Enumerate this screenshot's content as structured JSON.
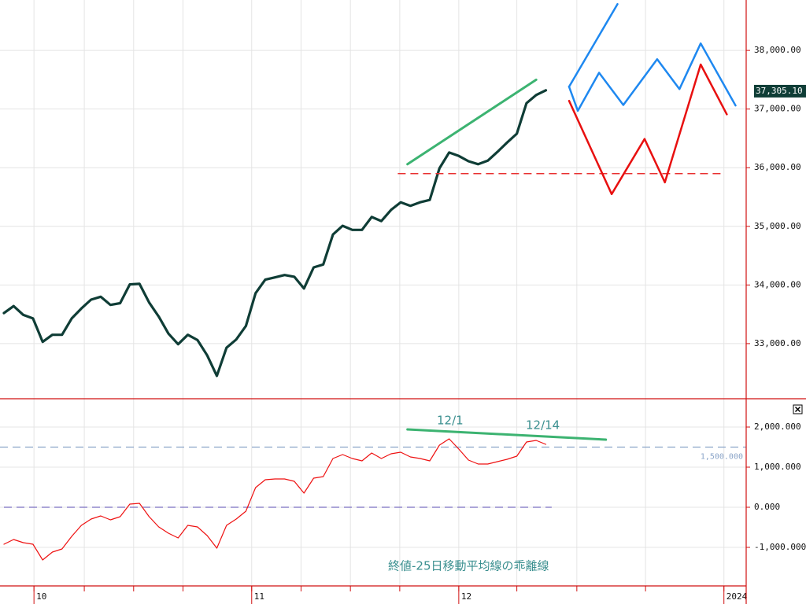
{
  "chart_data": [
    {
      "type": "line",
      "ylim": [
        32060,
        38860
      ],
      "yticks": [
        {
          "value": 33000,
          "label": "33,000.00"
        },
        {
          "value": 34000,
          "label": "34,000.00"
        },
        {
          "value": 35000,
          "label": "35,000.00"
        },
        {
          "value": 36000,
          "label": "36,000.00"
        },
        {
          "value": 37000,
          "label": "37,000.00"
        },
        {
          "value": 38000,
          "label": "38,000.00"
        }
      ],
      "price_label": {
        "value": 37305.1,
        "label": "37,305.10"
      },
      "series": [
        {
          "color": "#0f3d36",
          "width": 3.2,
          "x": [
            0,
            1,
            2,
            3,
            4,
            5,
            6,
            7,
            8,
            9,
            10,
            11,
            12,
            13,
            14,
            15,
            16,
            17,
            18,
            19,
            20,
            21,
            22,
            23,
            24,
            25,
            26,
            27,
            28,
            29,
            30,
            31,
            32,
            33,
            34,
            35,
            36,
            37,
            38,
            39,
            40,
            41,
            42,
            43,
            44,
            45,
            46,
            47,
            48,
            49,
            50,
            51,
            52,
            53,
            54,
            55,
            56
          ],
          "values": [
            33520,
            33640,
            33490,
            33430,
            33030,
            33150,
            33150,
            33430,
            33600,
            33750,
            33800,
            33660,
            33690,
            34010,
            34020,
            33700,
            33460,
            33170,
            32990,
            33150,
            33060,
            32800,
            32450,
            32930,
            33070,
            33300,
            33860,
            34090,
            34130,
            34170,
            34140,
            33940,
            34300,
            34350,
            34860,
            35010,
            34940,
            34940,
            35160,
            35090,
            35280,
            35410,
            35350,
            35410,
            35450,
            35990,
            36260,
            36200,
            36110,
            36060,
            36120,
            36270,
            36430,
            36580,
            37100,
            37240,
            37320
          ]
        },
        {
          "color": "#3cb371",
          "width": 3,
          "x": [
            41.7,
            55.0
          ],
          "values": [
            36060,
            37500
          ]
        },
        {
          "color": "#e83030",
          "width": 1.5,
          "dash": true,
          "x": [
            40.7,
            74.4
          ],
          "values": [
            35900,
            35900
          ]
        },
        {
          "color": "#1e88f0",
          "width": 2.5,
          "x": [
            58.4,
            63.4
          ],
          "values": [
            37380,
            38790
          ]
        },
        {
          "color": "#1e88f0",
          "width": 2.5,
          "x": [
            58.4,
            59.3,
            61.5,
            64,
            67.5,
            69.8,
            72,
            75.6
          ],
          "values": [
            37380,
            36970,
            37620,
            37070,
            37850,
            37340,
            38120,
            37060
          ]
        },
        {
          "color": "#e81010",
          "width": 2.5,
          "x": [
            58.4,
            62.8,
            66.2,
            68.3,
            72,
            74.7
          ],
          "values": [
            37140,
            35550,
            36490,
            35750,
            37760,
            36910
          ]
        }
      ]
    },
    {
      "type": "line",
      "ylim": [
        -1961,
        2706
      ],
      "yticks": [
        {
          "value": -1000,
          "label": "-1,000.000"
        },
        {
          "value": 0,
          "label": "0.000"
        },
        {
          "value": 1000,
          "label": "1,000.000"
        },
        {
          "value": 2000,
          "label": "2,000.000"
        }
      ],
      "xlim": [
        -0.41,
        76.7
      ],
      "xticks": [
        {
          "value": 3.1,
          "label": "10"
        },
        {
          "value": 25.6,
          "label": "11"
        },
        {
          "value": 47,
          "label": "12"
        },
        {
          "value": 74.4,
          "label": "2024"
        }
      ],
      "xgrid": [
        3.1,
        8.3,
        13.4,
        18.5,
        25.6,
        30.7,
        35.8,
        40.9,
        47,
        53,
        59.2,
        66.3,
        74.4
      ],
      "annotations": [
        "12/1",
        "12/14",
        "終値-25日移動平均線の乖離線"
      ],
      "series": [
        {
          "color": "#8aa4c8",
          "width": 1.2,
          "dash": true,
          "label": "1,500.000",
          "x": [
            -0.41,
            76.7
          ],
          "values": [
            1500,
            1500
          ]
        },
        {
          "color": "#7b6fc0",
          "width": 1.2,
          "dash": true,
          "x": [
            0,
            56.6
          ],
          "values": [
            0,
            0
          ]
        },
        {
          "color": "#3cb371",
          "width": 3,
          "x": [
            41.7,
            62.2
          ],
          "values": [
            1941,
            1686
          ]
        },
        {
          "color": "#ee1111",
          "width": 1.2,
          "x": [
            0,
            1,
            2,
            3,
            4,
            5,
            6,
            7,
            8,
            9,
            10,
            11,
            12,
            13,
            14,
            15,
            16,
            17,
            18,
            19,
            20,
            21,
            22,
            23,
            24,
            25,
            26,
            27,
            28,
            29,
            30,
            31,
            32,
            33,
            34,
            35,
            36,
            37,
            38,
            39,
            40,
            41,
            42,
            43,
            44,
            45,
            46,
            47,
            48,
            49,
            50,
            51,
            52,
            53,
            54,
            55,
            56
          ],
          "values": [
            -922,
            -804,
            -882,
            -922,
            -1314,
            -1118,
            -1039,
            -725,
            -451,
            -294,
            -216,
            -314,
            -235,
            78,
            98,
            -235,
            -490,
            -647,
            -765,
            -451,
            -490,
            -706,
            -1020,
            -451,
            -294,
            -98,
            490,
            686,
            706,
            706,
            647,
            353,
            725,
            765,
            1216,
            1314,
            1216,
            1157,
            1353,
            1216,
            1333,
            1373,
            1255,
            1216,
            1157,
            1549,
            1706,
            1451,
            1176,
            1078,
            1078,
            1137,
            1196,
            1275,
            1627,
            1667,
            1569
          ]
        }
      ]
    }
  ]
}
